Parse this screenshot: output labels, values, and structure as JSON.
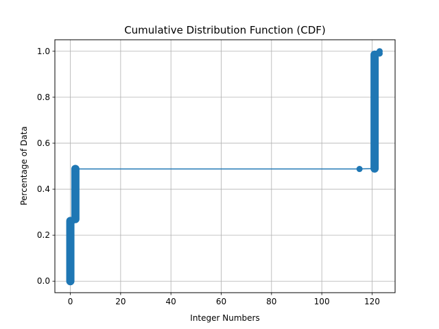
{
  "chart_data": {
    "type": "line",
    "title": "Cumulative Distribution Function (CDF)",
    "xlabel": "Integer Numbers",
    "ylabel": "Percentage of Data",
    "xlim": [
      -6.15,
      129.15
    ],
    "ylim": [
      -0.05,
      1.05
    ],
    "xticks": [
      0,
      20,
      40,
      60,
      80,
      100,
      120
    ],
    "yticks": [
      0.0,
      0.2,
      0.4,
      0.6,
      0.8,
      1.0
    ],
    "grid": true,
    "color": "#1f77b4",
    "series": [
      {
        "x": [
          0,
          0,
          1,
          2,
          2,
          115,
          121,
          121,
          122,
          123,
          123
        ],
        "y": [
          0.0,
          0.262,
          0.262,
          0.27,
          0.488,
          0.488,
          0.49,
          0.985,
          0.99,
          0.99,
          1.0
        ]
      }
    ],
    "dense_segments": [
      {
        "x": 0,
        "y_from": 0.0,
        "y_to": 0.262
      },
      {
        "x": 2,
        "y_from": 0.27,
        "y_to": 0.488
      },
      {
        "x": 121,
        "y_from": 0.49,
        "y_to": 0.985
      }
    ]
  }
}
